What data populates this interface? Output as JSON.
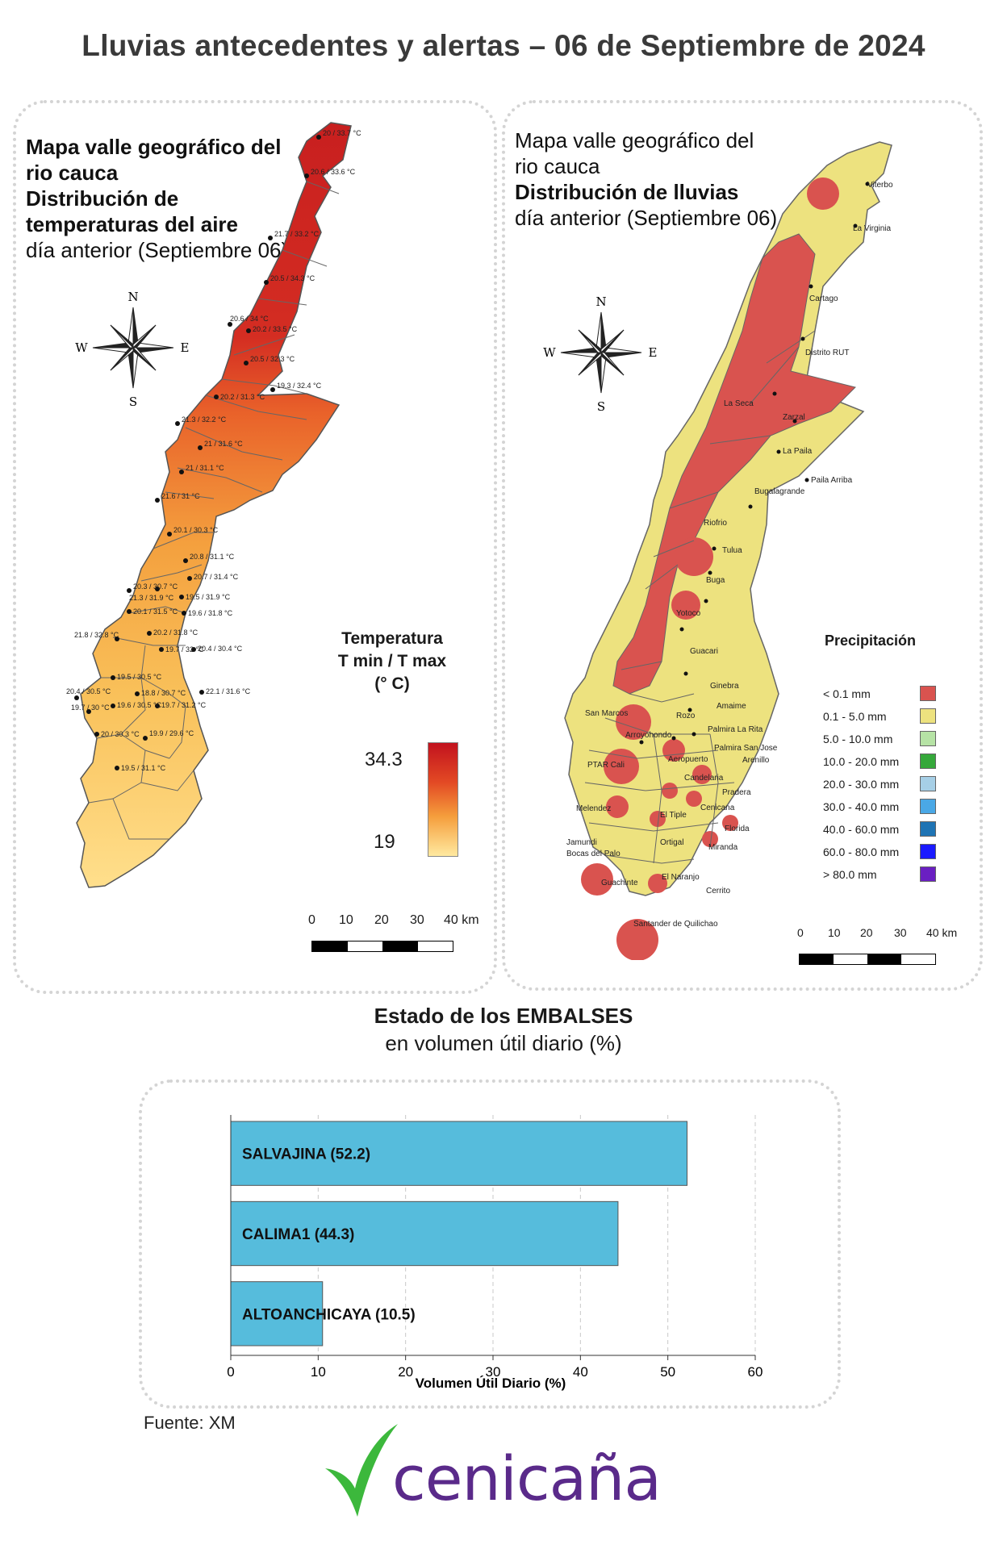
{
  "title": "Lluvias antecedentes y alertas – 06 de Septiembre de 2024",
  "temp_map": {
    "line1": "Mapa valle geográfico del",
    "line2": "rio cauca",
    "line3": "Distribución de",
    "line4": "temperaturas del aire",
    "line5": "día anterior (Septiembre 06)",
    "legend_title": [
      "Temperatura",
      "T min / T max",
      "(° C)"
    ],
    "max": "34.3",
    "min": "19",
    "stations": [
      "20 / 33.7 °C",
      "20.6 / 33.6 °C",
      "21.7 / 33.2 °C",
      "20.5 / 34.3 °C",
      "20.6 / 34 °C",
      "20.2 / 33.5 °C",
      "20.5 / 32.3 °C",
      "19.3 / 32.4 °C",
      "20.2 / 31.3 °C",
      "21.3 / 32.2 °C",
      "21 / 31.6 °C",
      "21 / 31.1 °C",
      "21.6 / 31 °C",
      "20.1 / 30.3 °C",
      "20.8 / 31.1 °C",
      "20.7 / 31.4 °C",
      "20.3 / 30.7 °C",
      "21.3 / 31.9 °C",
      "19.5 / 31.9 °C",
      "20.1 / 31.5 °C",
      "19.6 / 31.8 °C",
      "21.8 / 32.8 °C",
      "20.2 / 31.8 °C",
      "19.7 / 32 °C",
      "20.4 / 30.4 °C",
      "19.5 / 30.5 °C",
      "18.8 / 30.7 °C",
      "22.1 / 31.6 °C",
      "20.4 / 30.5 °C",
      "19.6 / 30.5 °C",
      "19.7 / 31.2 °C",
      "19.7 / 30 °C",
      "20 / 30.3 °C",
      "19.9 / 29.6 °C",
      "19.5 / 31.1 °C"
    ],
    "scale": [
      "0",
      "10",
      "20",
      "30",
      "40 km"
    ]
  },
  "rain_map": {
    "line1": "Mapa valle geográfico del",
    "line2": "rio cauca",
    "line3": "Distribución de lluvias",
    "line4": "día anterior (Septiembre 06)",
    "legend_title": "Precipitación",
    "legend": [
      {
        "label": "< 0.1 mm",
        "color": "#d9534f"
      },
      {
        "label": "0.1 - 5.0 mm",
        "color": "#ede27f"
      },
      {
        "label": "5.0 - 10.0 mm",
        "color": "#b6e3a5"
      },
      {
        "label": "10.0 - 20.0 mm",
        "color": "#35a83a"
      },
      {
        "label": "20.0 - 30.0 mm",
        "color": "#a6cfe6"
      },
      {
        "label": "30.0 - 40.0 mm",
        "color": "#4aa8e6"
      },
      {
        "label": "40.0 - 60.0 mm",
        "color": "#1f74b4"
      },
      {
        "label": "60.0 - 80.0 mm",
        "color": "#1a1aff"
      },
      {
        "label": "> 80.0 mm",
        "color": "#6a1fc2"
      }
    ],
    "cities": [
      "Viterbo",
      "La Virginia",
      "Cartago",
      "Distrito RUT",
      "La Seca",
      "Zarzal",
      "La Paila",
      "Paila Arriba",
      "Bugalagrande",
      "Riofrio",
      "Tulua",
      "Buga",
      "Yotoco",
      "Guacari",
      "Ginebra",
      "Amaime",
      "San Marcos",
      "Rozo",
      "Palmira La Rita",
      "Arroyohondo",
      "Palmira San Jose",
      "PTAR Cali",
      "Aeropuerto",
      "Arenillo",
      "Candelaria",
      "Pradera",
      "Melendez",
      "Cenicana",
      "El Tiple",
      "Florida",
      "Jamundi",
      "Ortigal",
      "Bocas del Palo",
      "Miranda",
      "El Naranjo",
      "Guachinte",
      "Cerrito",
      "Santander de Quilichao"
    ],
    "scale": [
      "0",
      "10",
      "20",
      "30",
      "40 km"
    ]
  },
  "chart_title_bold": "Estado de los EMBALSES",
  "chart_title_sub": "en volumen útil diario (%)",
  "chart_data": {
    "type": "bar",
    "orientation": "horizontal",
    "categories": [
      "SALVAJINA (52.2)",
      "CALIMA1 (44.3)",
      "ALTOANCHICAYA (10.5)"
    ],
    "values": [
      52.2,
      44.3,
      10.5
    ],
    "xlabel": "Volumen Útil Diario (%)",
    "xlim": [
      0,
      60
    ],
    "ticks": [
      "0",
      "10",
      "20",
      "30",
      "40",
      "50",
      "60"
    ],
    "bar_color": "#56bcdc",
    "grid": "vertical dashed"
  },
  "source": "Fuente: XM",
  "logo": "cenicaña"
}
